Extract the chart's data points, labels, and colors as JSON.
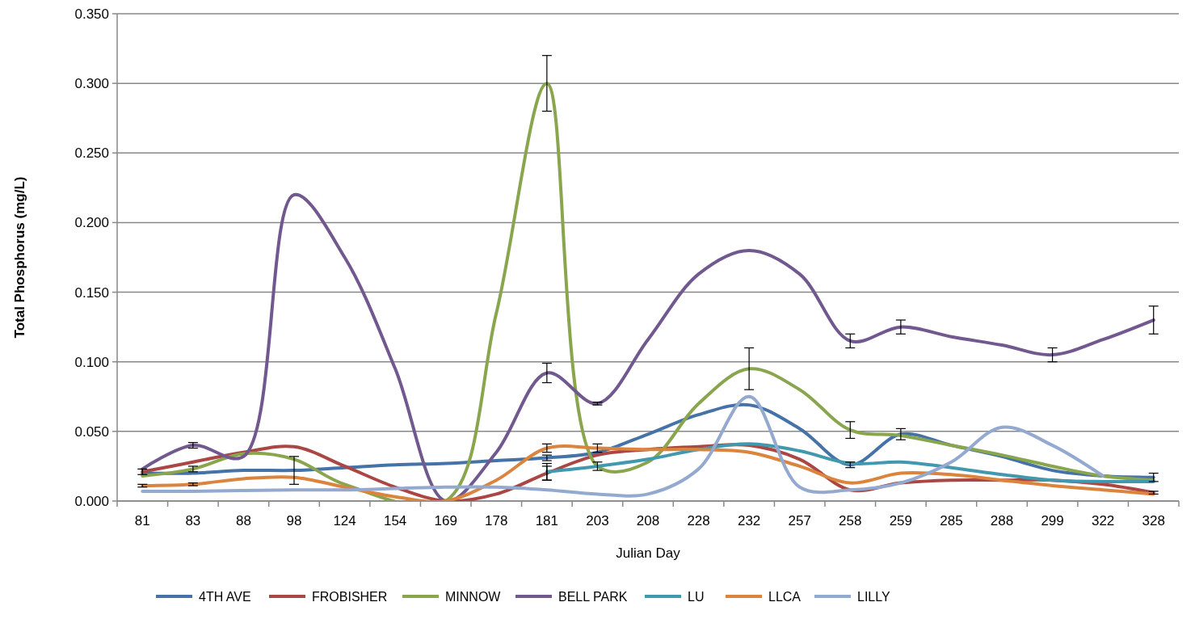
{
  "chart_data": {
    "type": "line",
    "xlabel": "Julian Day",
    "ylabel": "Total Phosphorus (mg/L)",
    "categories": [
      "81",
      "83",
      "88",
      "98",
      "124",
      "154",
      "169",
      "178",
      "181",
      "203",
      "208",
      "228",
      "232",
      "257",
      "258",
      "259",
      "285",
      "288",
      "299",
      "322",
      "328"
    ],
    "ylim": [
      0,
      0.35
    ],
    "yticks": [
      {
        "value": 0,
        "label": "0.000"
      },
      {
        "value": 0.05,
        "label": "0.050"
      },
      {
        "value": 0.1,
        "label": "0.100"
      },
      {
        "value": 0.15,
        "label": "0.150"
      },
      {
        "value": 0.2,
        "label": "0.200"
      },
      {
        "value": 0.25,
        "label": "0.250"
      },
      {
        "value": 0.3,
        "label": "0.300"
      },
      {
        "value": 0.35,
        "label": "0.350"
      }
    ],
    "grid": "y",
    "legend": "bottom",
    "marker": "none",
    "line_style": "solid",
    "series": [
      {
        "name": "4TH AVE",
        "color": "#4572a7",
        "values": [
          0.02,
          0.02,
          0.022,
          0.022,
          0.024,
          0.026,
          0.027,
          0.029,
          0.031,
          0.035,
          0.048,
          0.062,
          0.069,
          0.052,
          0.026,
          0.048,
          0.04,
          0.032,
          0.022,
          0.018,
          0.017
        ],
        "errors": [
          null,
          null,
          null,
          0.01,
          null,
          null,
          null,
          null,
          0.002,
          null,
          null,
          null,
          null,
          null,
          0.002,
          0.004,
          null,
          null,
          null,
          null,
          0.003
        ]
      },
      {
        "name": "FROBISHER",
        "color": "#aa4643",
        "values": [
          0.021,
          0.028,
          0.035,
          0.039,
          0.025,
          0.01,
          0.0,
          0.005,
          0.02,
          0.033,
          0.037,
          0.039,
          0.04,
          0.03,
          0.008,
          0.013,
          0.015,
          0.015,
          0.015,
          0.012,
          0.006
        ],
        "errors": [
          0.002,
          null,
          null,
          null,
          null,
          null,
          null,
          null,
          0.005,
          null,
          null,
          null,
          null,
          null,
          null,
          null,
          null,
          null,
          null,
          null,
          0.001
        ]
      },
      {
        "name": "MINNOW",
        "color": "#89a54e",
        "values": [
          0.018,
          0.023,
          0.034,
          0.03,
          0.012,
          null,
          0.0,
          0.135,
          0.3,
          0.025,
          0.028,
          0.07,
          0.095,
          0.08,
          0.051,
          0.047,
          0.04,
          0.033,
          0.025,
          0.018,
          0.015
        ],
        "errors": [
          null,
          0.002,
          null,
          null,
          null,
          null,
          null,
          null,
          0.02,
          0.003,
          null,
          null,
          0.015,
          null,
          0.006,
          null,
          null,
          null,
          null,
          null,
          null
        ]
      },
      {
        "name": "BELL PARK",
        "color": "#71588f",
        "values": [
          0.023,
          0.04,
          0.032,
          0.22,
          0.175,
          0.095,
          0.0,
          0.035,
          0.092,
          0.07,
          0.116,
          0.163,
          0.18,
          0.163,
          0.115,
          0.125,
          0.118,
          0.112,
          0.105,
          0.116,
          0.13
        ],
        "errors": [
          null,
          0.002,
          null,
          null,
          null,
          null,
          null,
          null,
          0.007,
          0.001,
          null,
          null,
          null,
          null,
          0.005,
          0.005,
          null,
          null,
          0.005,
          null,
          0.01
        ]
      },
      {
        "name": "LU",
        "color": "#4198af",
        "values": [
          null,
          null,
          null,
          null,
          null,
          null,
          null,
          null,
          0.021,
          0.025,
          0.03,
          0.037,
          0.041,
          0.036,
          0.027,
          0.028,
          0.024,
          0.019,
          0.015,
          0.014,
          0.014
        ],
        "errors": [
          null,
          null,
          null,
          null,
          null,
          null,
          null,
          null,
          0.006,
          null,
          null,
          null,
          null,
          null,
          null,
          null,
          null,
          null,
          null,
          null,
          null
        ]
      },
      {
        "name": "LLCA",
        "color": "#db843d",
        "values": [
          0.011,
          0.012,
          0.016,
          0.017,
          0.01,
          0.003,
          0.0,
          0.015,
          0.038,
          0.038,
          0.037,
          0.037,
          0.035,
          0.025,
          0.013,
          0.02,
          0.019,
          0.015,
          0.011,
          0.008,
          0.005
        ],
        "errors": [
          0.001,
          0.001,
          null,
          null,
          null,
          null,
          null,
          null,
          0.003,
          0.003,
          null,
          null,
          null,
          null,
          null,
          null,
          null,
          null,
          null,
          null,
          null
        ]
      },
      {
        "name": "LILLY",
        "color": "#93a9cf",
        "values": [
          0.007,
          0.007,
          0.0075,
          0.008,
          0.008,
          0.009,
          0.01,
          0.01,
          0.008,
          0.005,
          0.005,
          0.023,
          0.075,
          0.01,
          0.008,
          0.013,
          0.028,
          0.053,
          0.04,
          0.018,
          null
        ]
      }
    ]
  }
}
